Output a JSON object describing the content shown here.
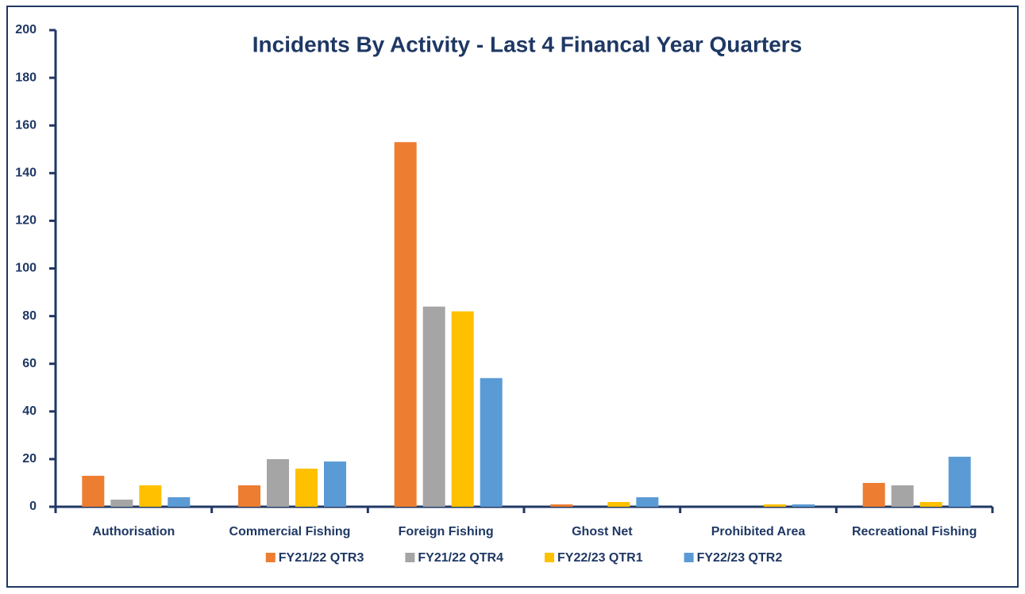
{
  "chart_data": {
    "type": "bar",
    "title": "Incidents By Activity - Last 4 Financal Year Quarters",
    "categories": [
      "Authorisation",
      "Commercial Fishing",
      "Foreign Fishing",
      "Ghost Net",
      "Prohibited Area",
      "Recreational Fishing"
    ],
    "series": [
      {
        "name": "FY21/22 QTR3",
        "color": "#ed7d31",
        "values": [
          13,
          9,
          153,
          1,
          0,
          10
        ]
      },
      {
        "name": "FY21/22 QTR4",
        "color": "#a5a5a5",
        "values": [
          3,
          20,
          84,
          0,
          0,
          9
        ]
      },
      {
        "name": "FY22/23 QTR1",
        "color": "#ffc000",
        "values": [
          9,
          16,
          82,
          2,
          1,
          2
        ]
      },
      {
        "name": "FY22/23 QTR2",
        "color": "#5b9bd5",
        "values": [
          4,
          19,
          54,
          4,
          1,
          21
        ]
      }
    ],
    "ylim": [
      0,
      200
    ],
    "yticks": [
      0,
      20,
      40,
      60,
      80,
      100,
      120,
      140,
      160,
      180,
      200
    ],
    "legend": "bottom"
  }
}
